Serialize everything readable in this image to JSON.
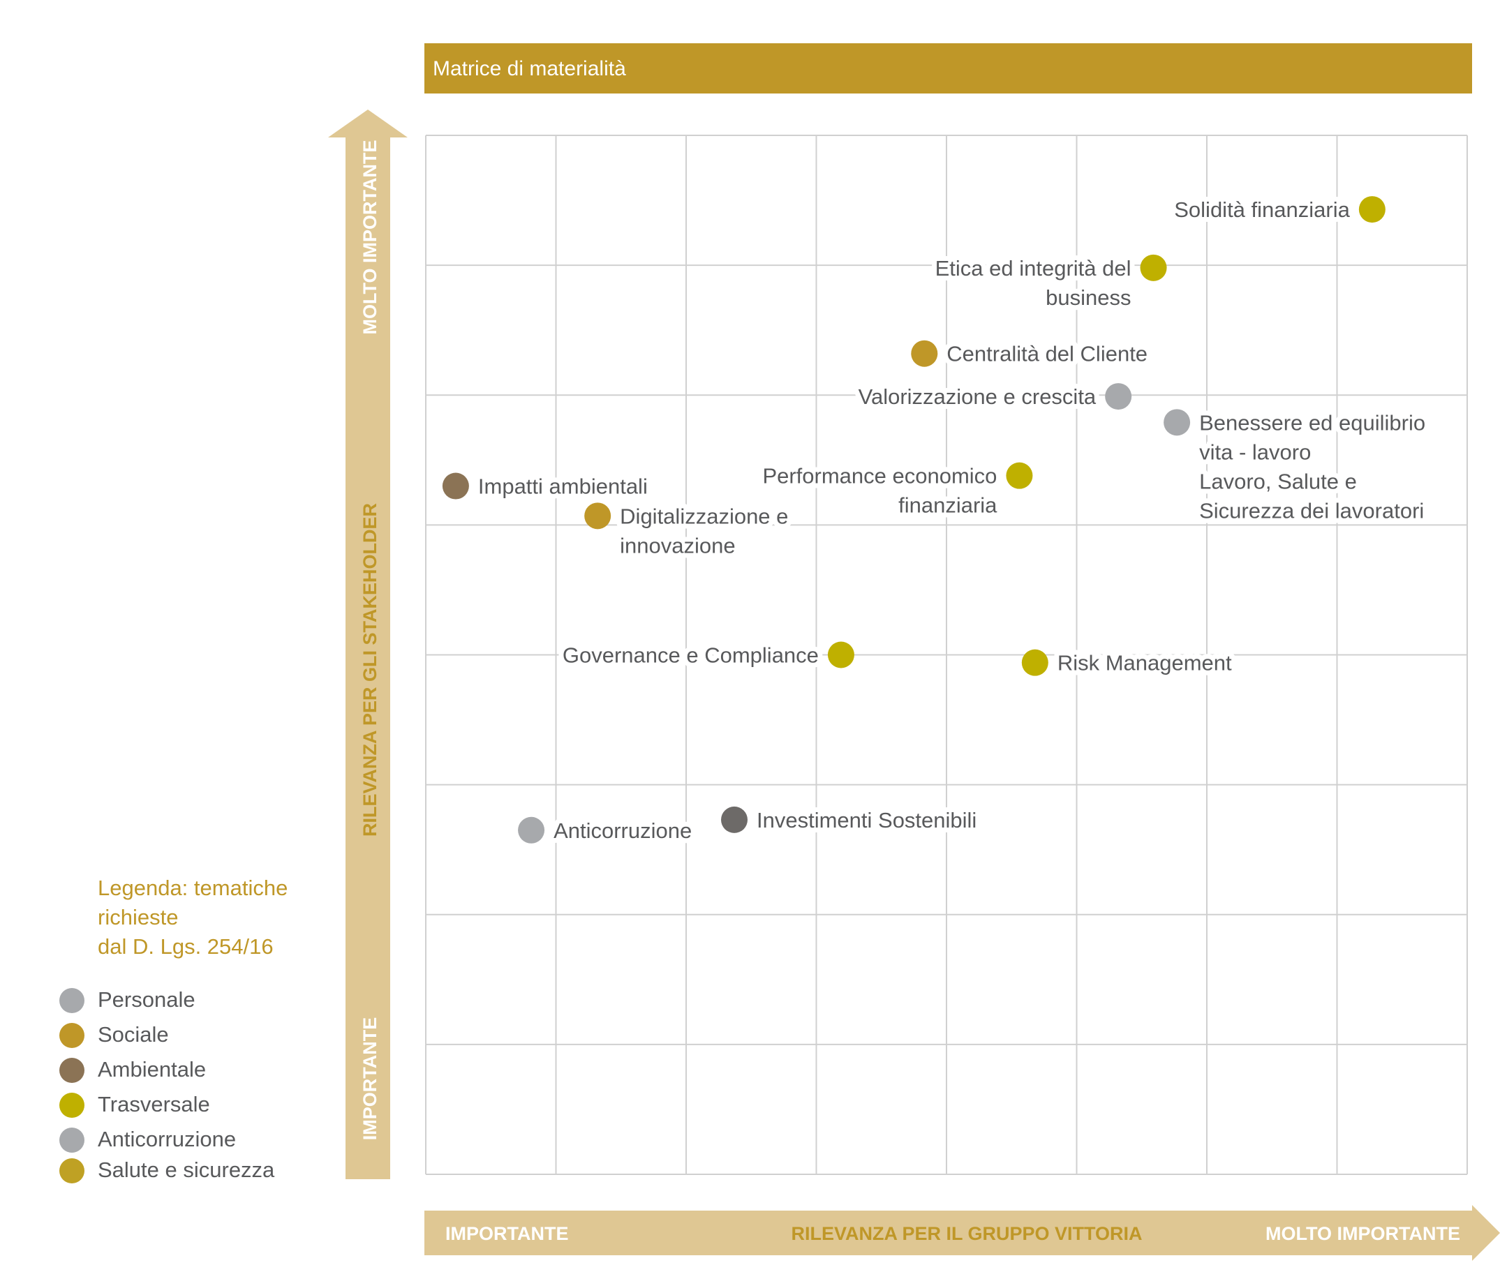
{
  "header": {
    "title": "Matrice di materialità"
  },
  "y_axis": {
    "low": "IMPORTANTE",
    "mid": "RILEVANZA PER GLI STAKEHOLDER",
    "high": "MOLTO IMPORTANTE"
  },
  "x_axis": {
    "low": "IMPORTANTE",
    "mid": "RILEVANZA PER IL GRUPPO VITTORIA",
    "high": "MOLTO IMPORTANTE"
  },
  "legend": {
    "title_lines": [
      "Legenda: tematiche",
      "richieste",
      "dal D. Lgs. 254/16"
    ],
    "items": [
      {
        "label": "Personale",
        "color": "#a7a9ac"
      },
      {
        "label": "Sociale",
        "color": "#bf9728"
      },
      {
        "label": "Ambientale",
        "color": "#8b7355"
      },
      {
        "label": "Trasversale",
        "color": "#bfb000"
      },
      {
        "label": "Anticorruzione",
        "color": "#a7a9ac"
      },
      {
        "label": "Salute e sicurezza",
        "color": "#bfa124"
      }
    ]
  },
  "colors": {
    "header_bg": "#bf9728",
    "axis_band": "#dfc793",
    "axis_text": "#ffffff",
    "axis_mid_text": "#bf9728",
    "grid": "#d0d0d0",
    "label_text": "#58595b",
    "legend_title": "#bf9728"
  },
  "chart_data": {
    "type": "scatter",
    "title": "Matrice di materialità",
    "xlabel": "RILEVANZA PER IL GRUPPO VITTORIA",
    "ylabel": "RILEVANZA PER GLI STAKEHOLDER",
    "xlim": [
      0,
      8
    ],
    "ylim": [
      0,
      8
    ],
    "grid": true,
    "legend_position": "left",
    "points": [
      {
        "name": "Solidità finanziaria",
        "lines": [
          "Solidità finanziaria"
        ],
        "x": 7.27,
        "y": 7.43,
        "color": "#bfb000",
        "label_side": "left"
      },
      {
        "name": "Etica ed integrità del business",
        "lines": [
          "Etica ed integrità del",
          "business"
        ],
        "x": 5.59,
        "y": 6.98,
        "color": "#bfb000",
        "label_side": "left"
      },
      {
        "name": "Centralità del Cliente",
        "lines": [
          "Centralità del Cliente"
        ],
        "x": 3.83,
        "y": 6.32,
        "color": "#bf9728",
        "label_side": "right"
      },
      {
        "name": "Valorizzazione e crescita",
        "lines": [
          "Valorizzazione e crescita"
        ],
        "x": 5.32,
        "y": 5.99,
        "color": "#a7a9ac",
        "label_side": "left"
      },
      {
        "name": "Benessere ed equilibrio vita - lavoro",
        "lines": [
          "Benessere ed equilibrio",
          "vita - lavoro",
          "Lavoro, Salute e",
          "Sicurezza dei lavoratori"
        ],
        "x": 5.77,
        "y": 5.79,
        "color": "#a7a9ac",
        "label_side": "right"
      },
      {
        "name": "Performance economico finanziaria",
        "lines": [
          "Performance economico",
          "finanziaria"
        ],
        "x": 4.56,
        "y": 5.38,
        "color": "#bfb000",
        "label_side": "left"
      },
      {
        "name": "Impatti ambientali",
        "lines": [
          "Impatti ambientali"
        ],
        "x": 0.23,
        "y": 5.3,
        "color": "#8b7355",
        "label_side": "right"
      },
      {
        "name": "Digitalizzazione e innovazione",
        "lines": [
          "Digitalizzazione e",
          "innovazione"
        ],
        "x": 1.32,
        "y": 5.07,
        "color": "#bf9728",
        "label_side": "right"
      },
      {
        "name": "Governance e Compliance",
        "lines": [
          "Governance e Compliance"
        ],
        "x": 3.19,
        "y": 4.0,
        "color": "#bfb000",
        "label_side": "left"
      },
      {
        "name": "Risk Management",
        "lines": [
          "Risk Management"
        ],
        "x": 4.68,
        "y": 3.94,
        "color": "#bfb000",
        "label_side": "right"
      },
      {
        "name": "Investimenti Sostenibili",
        "lines": [
          "Investimenti Sostenibili"
        ],
        "x": 2.37,
        "y": 2.73,
        "color": "#6d6a68",
        "label_side": "right"
      },
      {
        "name": "Anticorruzione",
        "lines": [
          "Anticorruzione"
        ],
        "x": 0.81,
        "y": 2.65,
        "color": "#a7a9ac",
        "label_side": "right"
      }
    ]
  }
}
